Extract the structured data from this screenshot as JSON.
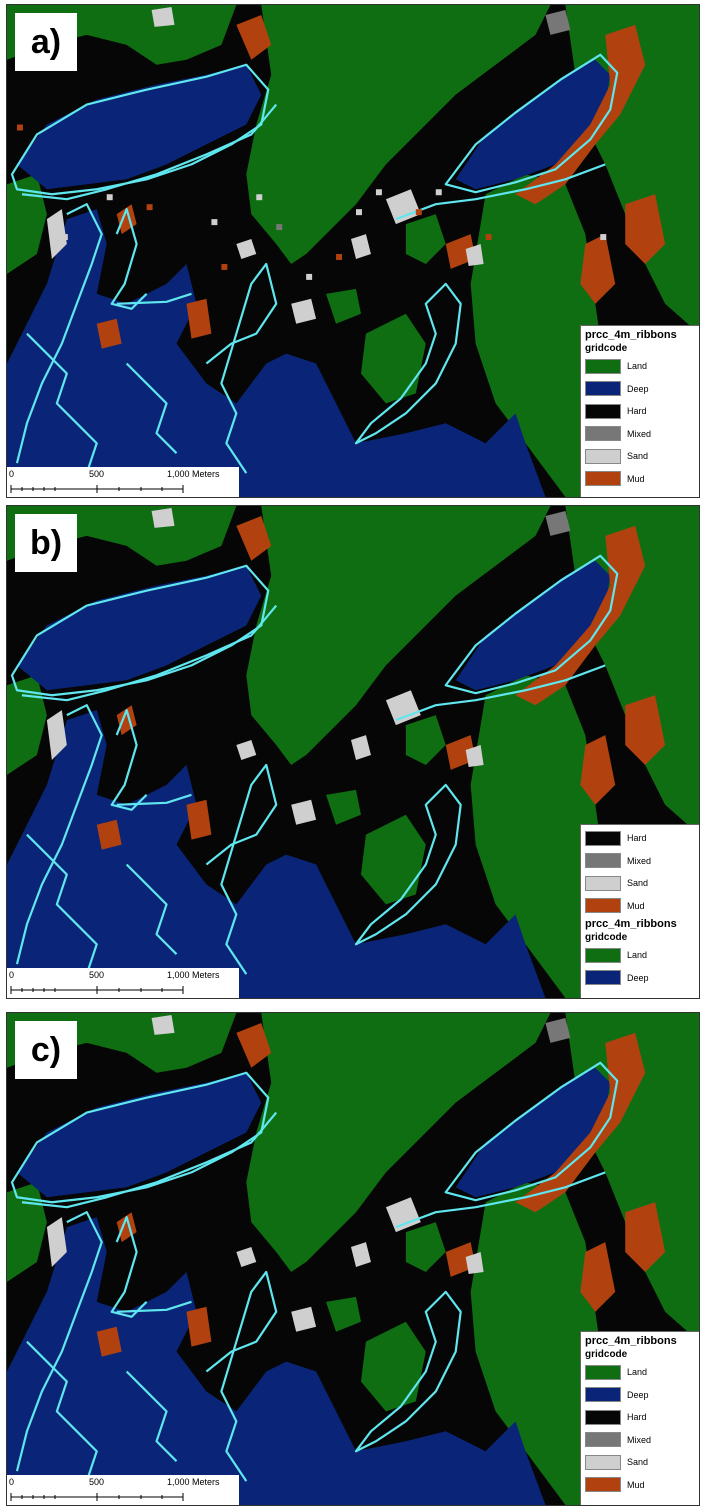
{
  "colors": {
    "land": "#0f6e12",
    "deep": "#0a2577",
    "hard": "#060606",
    "mixed": "#777777",
    "sand": "#cfcfcf",
    "mud": "#b1420f",
    "contour": "#5fe6ee"
  },
  "scale": {
    "zero": "0",
    "mid": "500",
    "end": "1,000 Meters"
  },
  "legend_title": "prcc_4m_ribbons",
  "legend_subtitle": "gridcode",
  "panels": [
    {
      "label": "a)",
      "legend_items": [
        {
          "name": "Land",
          "color": "#0f6e12"
        },
        {
          "name": "Deep",
          "color": "#0a2577"
        },
        {
          "name": "Hard",
          "color": "#060606"
        },
        {
          "name": "Mixed",
          "color": "#777777"
        },
        {
          "name": "Sand",
          "color": "#cfcfcf"
        },
        {
          "name": "Mud",
          "color": "#b1420f"
        }
      ]
    },
    {
      "label": "b)",
      "legend_items_top": [
        {
          "name": "Hard",
          "color": "#060606"
        },
        {
          "name": "Mixed",
          "color": "#777777"
        },
        {
          "name": "Sand",
          "color": "#cfcfcf"
        },
        {
          "name": "Mud",
          "color": "#b1420f"
        }
      ],
      "legend_items_bottom": [
        {
          "name": "Land",
          "color": "#0f6e12"
        },
        {
          "name": "Deep",
          "color": "#0a2577"
        }
      ]
    },
    {
      "label": "c)",
      "legend_items": [
        {
          "name": "Land",
          "color": "#0f6e12"
        },
        {
          "name": "Deep",
          "color": "#0a2577"
        },
        {
          "name": "Hard",
          "color": "#060606"
        },
        {
          "name": "Mixed",
          "color": "#777777"
        },
        {
          "name": "Sand",
          "color": "#cfcfcf"
        },
        {
          "name": "Mud",
          "color": "#b1420f"
        }
      ]
    }
  ]
}
